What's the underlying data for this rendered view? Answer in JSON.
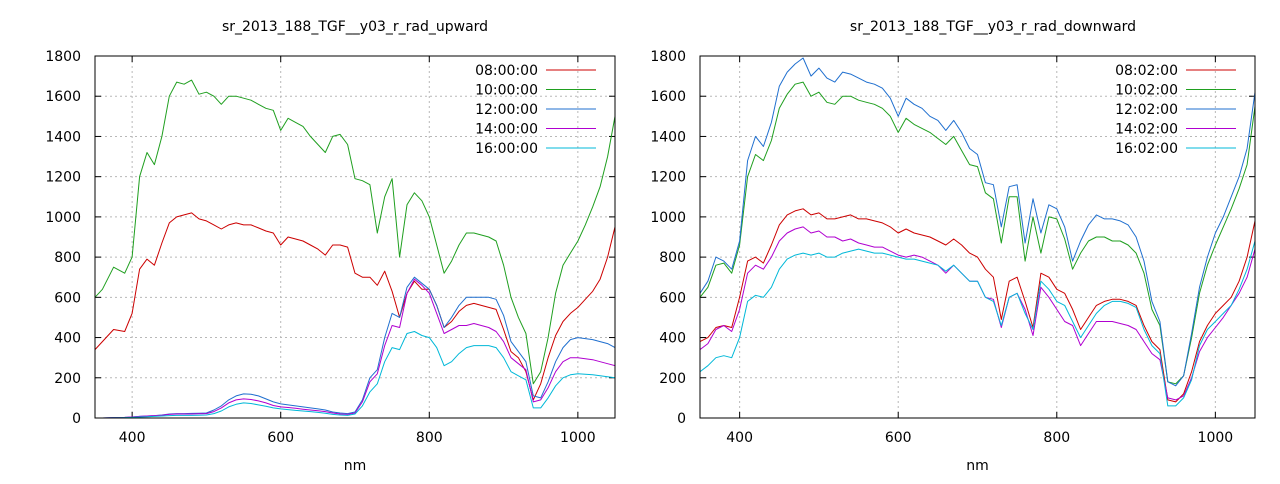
{
  "colors": {
    "08": "#cc0000",
    "10": "#1f9f1f",
    "12": "#1f6fcf",
    "14": "#b000d0",
    "16": "#00b8d8",
    "grid": "#b8b8b8"
  },
  "chart_data": [
    {
      "type": "line",
      "title": "sr_2013_188_TGF__y03_r_rad_upward",
      "xlabel": "nm",
      "ylabel": "",
      "xlim": [
        350,
        1050
      ],
      "ylim": [
        0,
        1800
      ],
      "xticks": [
        400,
        600,
        800,
        1000
      ],
      "yticks": [
        0,
        200,
        400,
        600,
        800,
        1000,
        1200,
        1400,
        1600,
        1800
      ],
      "grid": true,
      "legend_position": "top-right",
      "x": [
        350,
        360,
        375,
        390,
        400,
        410,
        420,
        430,
        440,
        450,
        460,
        470,
        480,
        490,
        500,
        510,
        520,
        530,
        540,
        550,
        560,
        570,
        580,
        590,
        600,
        610,
        620,
        630,
        640,
        650,
        660,
        670,
        680,
        690,
        700,
        710,
        720,
        730,
        740,
        750,
        760,
        770,
        780,
        790,
        800,
        810,
        820,
        830,
        840,
        850,
        860,
        870,
        880,
        890,
        900,
        910,
        920,
        930,
        940,
        950,
        960,
        970,
        980,
        990,
        1000,
        1010,
        1020,
        1030,
        1040,
        1050
      ],
      "series": [
        {
          "name": "08:00:00",
          "color_key": "08",
          "values": [
            340,
            380,
            440,
            430,
            520,
            740,
            790,
            760,
            870,
            970,
            1000,
            1010,
            1020,
            990,
            980,
            960,
            940,
            960,
            970,
            960,
            960,
            945,
            930,
            920,
            860,
            900,
            890,
            880,
            860,
            840,
            810,
            860,
            860,
            850,
            720,
            700,
            700,
            660,
            730,
            630,
            500,
            620,
            680,
            640,
            640,
            560,
            450,
            480,
            530,
            560,
            570,
            560,
            550,
            540,
            440,
            330,
            300,
            230,
            90,
            170,
            300,
            410,
            480,
            520,
            550,
            590,
            630,
            690,
            800,
            950
          ]
        },
        {
          "name": "10:00:00",
          "color_key": "10",
          "values": [
            600,
            640,
            750,
            720,
            800,
            1200,
            1320,
            1260,
            1400,
            1600,
            1670,
            1660,
            1680,
            1610,
            1620,
            1600,
            1560,
            1600,
            1600,
            1590,
            1580,
            1560,
            1540,
            1530,
            1430,
            1490,
            1470,
            1450,
            1400,
            1360,
            1320,
            1400,
            1410,
            1360,
            1190,
            1180,
            1160,
            920,
            1100,
            1190,
            800,
            1060,
            1120,
            1080,
            1000,
            860,
            720,
            780,
            860,
            920,
            920,
            910,
            900,
            880,
            760,
            600,
            500,
            420,
            170,
            230,
            400,
            620,
            760,
            820,
            880,
            960,
            1050,
            1150,
            1300,
            1500
          ]
        },
        {
          "name": "12:00:00",
          "color_key": "12",
          "values": [
            0,
            0,
            2,
            3,
            5,
            8,
            10,
            12,
            15,
            20,
            22,
            22,
            23,
            24,
            25,
            40,
            60,
            90,
            110,
            120,
            118,
            110,
            95,
            80,
            70,
            65,
            60,
            55,
            50,
            45,
            40,
            30,
            25,
            22,
            30,
            90,
            200,
            240,
            400,
            520,
            500,
            650,
            700,
            670,
            640,
            560,
            450,
            500,
            560,
            600,
            600,
            600,
            600,
            590,
            510,
            380,
            330,
            280,
            110,
            100,
            180,
            280,
            350,
            390,
            400,
            395,
            390,
            380,
            370,
            350
          ]
        },
        {
          "name": "14:00:00",
          "color_key": "14",
          "values": [
            0,
            0,
            2,
            3,
            5,
            8,
            10,
            12,
            14,
            18,
            20,
            20,
            20,
            21,
            22,
            32,
            50,
            75,
            90,
            95,
            92,
            85,
            75,
            62,
            55,
            52,
            48,
            44,
            40,
            36,
            32,
            25,
            20,
            18,
            25,
            80,
            180,
            220,
            360,
            460,
            450,
            620,
            690,
            660,
            620,
            520,
            420,
            440,
            460,
            460,
            470,
            460,
            450,
            430,
            380,
            300,
            270,
            240,
            80,
            90,
            150,
            230,
            280,
            300,
            300,
            295,
            290,
            280,
            270,
            260
          ]
        },
        {
          "name": "16:00:00",
          "color_key": "16",
          "values": [
            0,
            0,
            1,
            2,
            3,
            5,
            6,
            8,
            10,
            12,
            13,
            13,
            13,
            14,
            15,
            22,
            35,
            55,
            68,
            75,
            72,
            65,
            58,
            50,
            45,
            42,
            38,
            35,
            32,
            28,
            24,
            18,
            15,
            13,
            20,
            60,
            130,
            170,
            280,
            350,
            340,
            420,
            430,
            410,
            400,
            350,
            260,
            280,
            320,
            350,
            360,
            360,
            360,
            350,
            300,
            230,
            210,
            190,
            50,
            50,
            100,
            160,
            200,
            215,
            220,
            218,
            215,
            210,
            205,
            200
          ]
        }
      ]
    },
    {
      "type": "line",
      "title": "sr_2013_188_TGF__y03_r_rad_downward",
      "xlabel": "nm",
      "ylabel": "",
      "xlim": [
        350,
        1050
      ],
      "ylim": [
        0,
        1800
      ],
      "xticks": [
        400,
        600,
        800,
        1000
      ],
      "yticks": [
        0,
        200,
        400,
        600,
        800,
        1000,
        1200,
        1400,
        1600,
        1800
      ],
      "grid": true,
      "legend_position": "top-right",
      "x": [
        350,
        360,
        370,
        380,
        390,
        400,
        410,
        420,
        430,
        440,
        450,
        460,
        470,
        480,
        490,
        500,
        510,
        520,
        530,
        540,
        550,
        560,
        570,
        580,
        590,
        600,
        610,
        620,
        630,
        640,
        650,
        660,
        670,
        680,
        690,
        700,
        710,
        720,
        730,
        740,
        750,
        760,
        770,
        780,
        790,
        800,
        810,
        820,
        830,
        840,
        850,
        860,
        870,
        880,
        890,
        900,
        910,
        920,
        930,
        940,
        950,
        960,
        970,
        980,
        990,
        1000,
        1010,
        1020,
        1030,
        1040,
        1050
      ],
      "series": [
        {
          "name": "08:02:00",
          "color_key": "08",
          "values": [
            380,
            400,
            450,
            460,
            450,
            600,
            780,
            800,
            770,
            860,
            960,
            1010,
            1030,
            1040,
            1010,
            1020,
            990,
            990,
            1000,
            1010,
            990,
            990,
            980,
            970,
            950,
            920,
            940,
            920,
            910,
            900,
            880,
            860,
            890,
            860,
            820,
            800,
            740,
            700,
            490,
            680,
            700,
            580,
            450,
            720,
            700,
            640,
            620,
            540,
            440,
            500,
            560,
            580,
            590,
            590,
            580,
            560,
            460,
            380,
            340,
            90,
            80,
            120,
            230,
            380,
            460,
            520,
            560,
            600,
            680,
            800,
            980
          ]
        },
        {
          "name": "10:02:00",
          "color_key": "10",
          "values": [
            600,
            650,
            760,
            770,
            720,
            860,
            1200,
            1310,
            1280,
            1380,
            1540,
            1610,
            1660,
            1670,
            1600,
            1620,
            1570,
            1560,
            1600,
            1600,
            1580,
            1570,
            1560,
            1540,
            1500,
            1420,
            1490,
            1460,
            1440,
            1420,
            1390,
            1360,
            1400,
            1330,
            1260,
            1250,
            1120,
            1090,
            870,
            1100,
            1100,
            780,
            1000,
            820,
            1000,
            990,
            890,
            740,
            820,
            880,
            900,
            900,
            880,
            880,
            860,
            820,
            720,
            540,
            460,
            180,
            170,
            210,
            400,
            620,
            760,
            860,
            950,
            1040,
            1140,
            1260,
            1550
          ]
        },
        {
          "name": "12:02:00",
          "color_key": "12",
          "values": [
            620,
            680,
            800,
            780,
            740,
            880,
            1280,
            1400,
            1350,
            1470,
            1650,
            1720,
            1760,
            1790,
            1700,
            1740,
            1690,
            1670,
            1720,
            1710,
            1690,
            1670,
            1660,
            1640,
            1590,
            1500,
            1590,
            1560,
            1540,
            1500,
            1480,
            1430,
            1480,
            1420,
            1340,
            1310,
            1170,
            1160,
            950,
            1150,
            1160,
            870,
            1090,
            920,
            1060,
            1040,
            950,
            780,
            880,
            960,
            1010,
            990,
            990,
            980,
            960,
            900,
            780,
            580,
            480,
            180,
            160,
            210,
            420,
            650,
            800,
            920,
            1000,
            1100,
            1200,
            1340,
            1620
          ]
        },
        {
          "name": "14:02:00",
          "color_key": "14",
          "values": [
            340,
            370,
            440,
            460,
            430,
            540,
            720,
            760,
            740,
            800,
            880,
            920,
            940,
            950,
            920,
            930,
            900,
            900,
            880,
            890,
            870,
            860,
            850,
            850,
            830,
            810,
            800,
            810,
            800,
            780,
            760,
            720,
            760,
            720,
            680,
            680,
            600,
            590,
            450,
            600,
            620,
            540,
            410,
            650,
            600,
            540,
            480,
            460,
            360,
            420,
            480,
            480,
            480,
            470,
            460,
            440,
            380,
            320,
            290,
            100,
            90,
            110,
            200,
            330,
            400,
            450,
            500,
            560,
            620,
            700,
            840
          ]
        },
        {
          "name": "16:02:00",
          "color_key": "16",
          "values": [
            230,
            260,
            300,
            310,
            300,
            400,
            580,
            610,
            600,
            650,
            740,
            790,
            810,
            820,
            810,
            820,
            800,
            800,
            820,
            830,
            840,
            830,
            820,
            820,
            810,
            800,
            790,
            790,
            780,
            770,
            760,
            730,
            760,
            720,
            680,
            680,
            600,
            580,
            460,
            600,
            620,
            520,
            440,
            680,
            640,
            580,
            560,
            480,
            400,
            460,
            520,
            560,
            580,
            580,
            570,
            550,
            440,
            360,
            320,
            60,
            60,
            100,
            190,
            360,
            440,
            480,
            520,
            560,
            640,
            740,
            880
          ]
        }
      ]
    }
  ]
}
